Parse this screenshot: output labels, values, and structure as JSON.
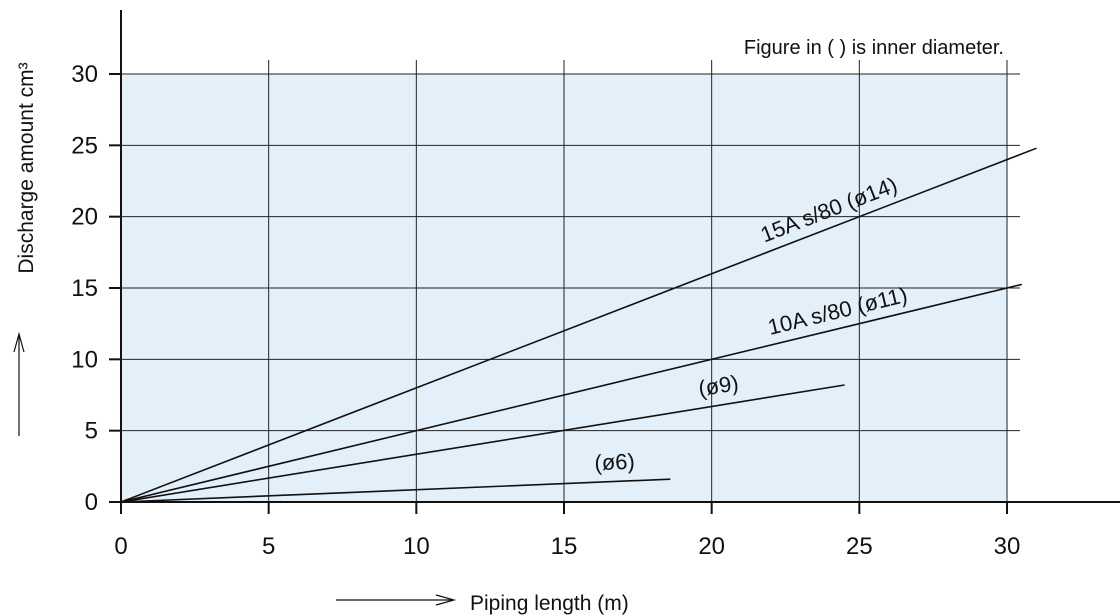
{
  "chart_data": {
    "type": "line",
    "note": "Figure in ( ) is inner diameter.",
    "xlabel": "Piping length (m)",
    "ylabel": "Discharge amount cm³",
    "xlim": [
      0,
      30
    ],
    "ylim": [
      0,
      30
    ],
    "x_ticks": [
      "0",
      "5",
      "10",
      "15",
      "20",
      "25",
      "30"
    ],
    "y_ticks": [
      "0",
      "5",
      "10",
      "15",
      "20",
      "25",
      "30"
    ],
    "grid": true,
    "plot_background": "#e3f0fa",
    "line_color": "#111111",
    "series": [
      {
        "name": "15A s/80 (ø14)",
        "x": [
          0,
          31
        ],
        "y": [
          0,
          24.8
        ]
      },
      {
        "name": "10A s/80 (ø11)",
        "x": [
          0,
          30.5
        ],
        "y": [
          0,
          15.25
        ]
      },
      {
        "name": "(ø9)",
        "x": [
          0,
          24.5
        ],
        "y": [
          0,
          8.2
        ]
      },
      {
        "name": "(ø6)",
        "x": [
          0,
          18.6
        ],
        "y": [
          0,
          1.6
        ]
      }
    ]
  }
}
